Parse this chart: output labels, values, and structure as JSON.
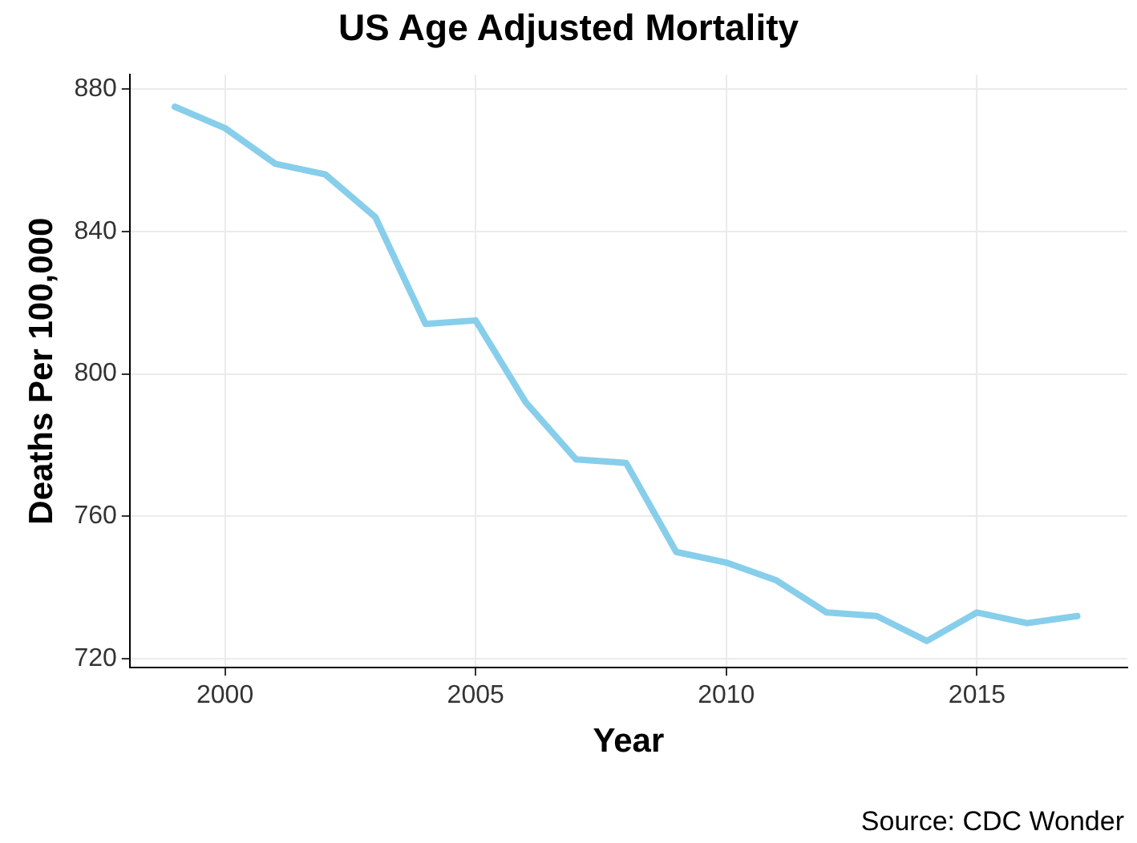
{
  "chart_data": {
    "type": "line",
    "title": "US Age Adjusted Mortality",
    "xlabel": "Year",
    "ylabel": "Deaths Per 100,000",
    "x": [
      1999,
      2000,
      2001,
      2002,
      2003,
      2004,
      2005,
      2006,
      2007,
      2008,
      2009,
      2010,
      2011,
      2012,
      2013,
      2014,
      2015,
      2016,
      2017
    ],
    "series": [
      {
        "color": "#87ceeb",
        "values": [
          875,
          869,
          859,
          856,
          844,
          814,
          815,
          792,
          776,
          775,
          750,
          747,
          742,
          733,
          732,
          725,
          733,
          730,
          732
        ]
      }
    ],
    "xlim": [
      1998.1,
      2018
    ],
    "xticks": [
      2000,
      2005,
      2010,
      2015
    ],
    "ylim": [
      717.5,
      884
    ],
    "yticks": [
      720,
      760,
      800,
      840,
      880
    ],
    "grid": true,
    "marker": "none",
    "line_style": "solid",
    "annotations": [
      "Source: CDC Wonder"
    ]
  }
}
